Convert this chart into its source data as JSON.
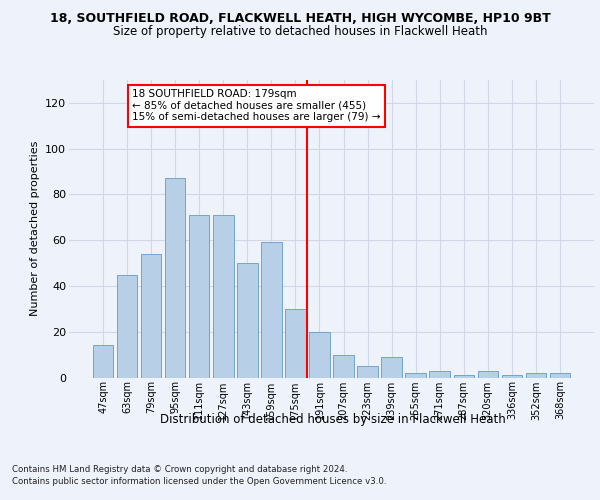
{
  "title1": "18, SOUTHFIELD ROAD, FLACKWELL HEATH, HIGH WYCOMBE, HP10 9BT",
  "title2": "Size of property relative to detached houses in Flackwell Heath",
  "xlabel": "Distribution of detached houses by size in Flackwell Heath",
  "ylabel": "Number of detached properties",
  "categories": [
    "47sqm",
    "63sqm",
    "79sqm",
    "95sqm",
    "111sqm",
    "127sqm",
    "143sqm",
    "159sqm",
    "175sqm",
    "191sqm",
    "207sqm",
    "223sqm",
    "239sqm",
    "255sqm",
    "271sqm",
    "287sqm",
    "320sqm",
    "336sqm",
    "352sqm",
    "368sqm"
  ],
  "values": [
    14,
    45,
    54,
    87,
    71,
    71,
    50,
    59,
    30,
    20,
    10,
    5,
    9,
    2,
    3,
    1,
    3,
    1,
    2,
    2
  ],
  "bar_color": "#b8cfe8",
  "bar_edge_color": "#6699cc",
  "grid_color": "#d0d8e8",
  "vline_color": "red",
  "annotation_text": "18 SOUTHFIELD ROAD: 179sqm\n← 85% of detached houses are smaller (455)\n15% of semi-detached houses are larger (79) →",
  "annotation_box_color": "white",
  "annotation_box_edge": "red",
  "ylim": [
    0,
    130
  ],
  "yticks": [
    0,
    20,
    40,
    60,
    80,
    100,
    120
  ],
  "footnote1": "Contains HM Land Registry data © Crown copyright and database right 2024.",
  "footnote2": "Contains public sector information licensed under the Open Government Licence v3.0.",
  "background_color": "#eef2fb"
}
